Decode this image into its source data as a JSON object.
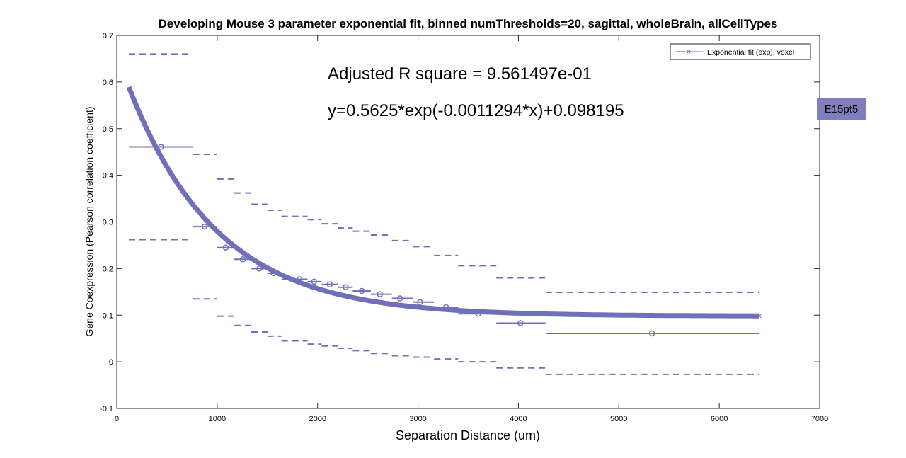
{
  "chart_data": {
    "type": "scatter",
    "title": "Developing Mouse 3 parameter exponential fit, binned numThresholds=20, sagittal, wholeBrain, allCellTypes",
    "xlabel": "Separation Distance (um)",
    "ylabel": "Gene Coexpression (Pearson correlation coefficient)",
    "xlim": [
      0,
      7000
    ],
    "ylim": [
      -0.1,
      0.7
    ],
    "xticks": [
      "0",
      "1000",
      "2000",
      "3000",
      "4000",
      "5000",
      "6000",
      "7000"
    ],
    "yticks": [
      "-0.1",
      "0",
      "0.1",
      "0.2",
      "0.3",
      "0.4",
      "0.5",
      "0.6",
      "0.7"
    ],
    "grid": false,
    "legend": {
      "position": "top-right",
      "entries": [
        "Exponential fit (exp), voxel"
      ]
    },
    "annotations": {
      "r_square": "Adjusted R square = 9.561497e-01",
      "equation": "y=0.5625*exp(-0.0011294*x)+0.098195"
    },
    "fit": {
      "a": 0.5625,
      "b": -0.0011294,
      "c": 0.098195,
      "x_range": [
        120,
        6400
      ]
    },
    "bins": [
      {
        "x": 440,
        "xmin": 120,
        "xmax": 760,
        "mean": 0.461,
        "upper": 0.66,
        "lower": 0.262
      },
      {
        "x": 875,
        "xmin": 760,
        "xmax": 1000,
        "mean": 0.29,
        "upper": 0.445,
        "lower": 0.135
      },
      {
        "x": 1085,
        "xmin": 1000,
        "xmax": 1170,
        "mean": 0.245,
        "upper": 0.392,
        "lower": 0.098
      },
      {
        "x": 1255,
        "xmin": 1170,
        "xmax": 1340,
        "mean": 0.22,
        "upper": 0.362,
        "lower": 0.078
      },
      {
        "x": 1420,
        "xmin": 1340,
        "xmax": 1500,
        "mean": 0.2,
        "upper": 0.338,
        "lower": 0.064
      },
      {
        "x": 1560,
        "xmin": 1500,
        "xmax": 1640,
        "mean": 0.19,
        "upper": 0.325,
        "lower": 0.055
      },
      {
        "x": 1820,
        "xmin": 1640,
        "xmax": 1900,
        "mean": 0.177,
        "upper": 0.312,
        "lower": 0.045
      },
      {
        "x": 1965,
        "xmin": 1900,
        "xmax": 2040,
        "mean": 0.172,
        "upper": 0.305,
        "lower": 0.038
      },
      {
        "x": 2120,
        "xmin": 2040,
        "xmax": 2200,
        "mean": 0.166,
        "upper": 0.296,
        "lower": 0.034
      },
      {
        "x": 2280,
        "xmin": 2200,
        "xmax": 2350,
        "mean": 0.16,
        "upper": 0.287,
        "lower": 0.029
      },
      {
        "x": 2440,
        "xmin": 2350,
        "xmax": 2530,
        "mean": 0.152,
        "upper": 0.28,
        "lower": 0.024
      },
      {
        "x": 2620,
        "xmin": 2530,
        "xmax": 2740,
        "mean": 0.145,
        "upper": 0.272,
        "lower": 0.018
      },
      {
        "x": 2820,
        "xmin": 2740,
        "xmax": 2950,
        "mean": 0.136,
        "upper": 0.26,
        "lower": 0.013
      },
      {
        "x": 3020,
        "xmin": 2950,
        "xmax": 3160,
        "mean": 0.128,
        "upper": 0.247,
        "lower": 0.01
      },
      {
        "x": 3280,
        "xmin": 3160,
        "xmax": 3400,
        "mean": 0.117,
        "upper": 0.228,
        "lower": 0.006
      },
      {
        "x": 3600,
        "xmin": 3400,
        "xmax": 3780,
        "mean": 0.103,
        "upper": 0.206,
        "lower": 0.0
      },
      {
        "x": 4020,
        "xmin": 3780,
        "xmax": 4270,
        "mean": 0.083,
        "upper": 0.18,
        "lower": -0.013
      },
      {
        "x": 5330,
        "xmin": 4270,
        "xmax": 6400,
        "mean": 0.061,
        "upper": 0.149,
        "lower": -0.027
      }
    ],
    "badge": "E15pt5",
    "color": "#7070b8"
  }
}
